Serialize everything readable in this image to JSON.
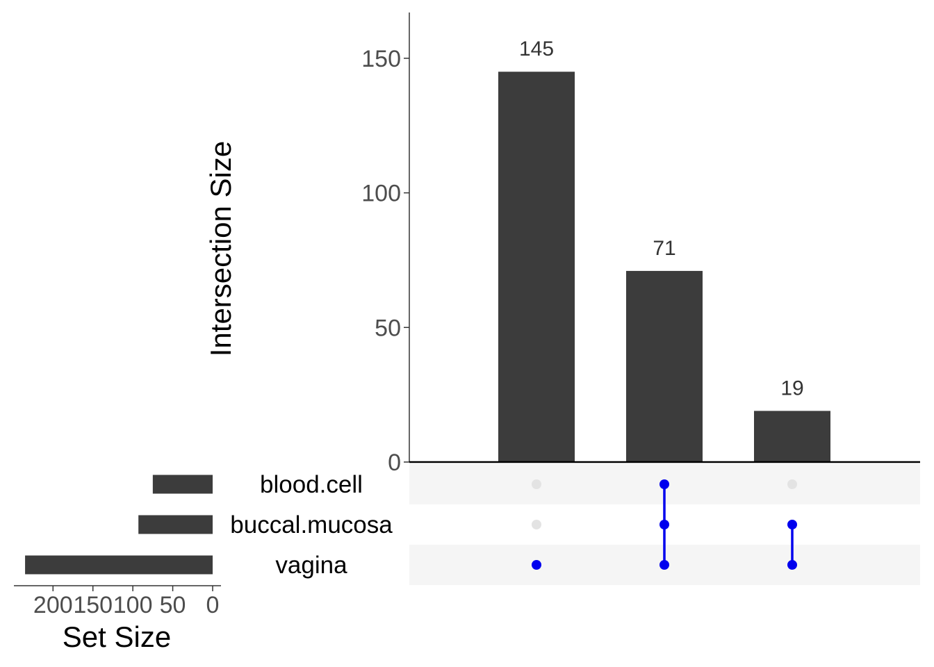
{
  "chart_data": {
    "type": "bar",
    "ylabel": "Intersection Size",
    "ylim": [
      0,
      167
    ],
    "yticks": [
      0,
      50,
      100,
      150
    ],
    "intersections": [
      {
        "sets": [
          "vagina"
        ],
        "size": 145
      },
      {
        "sets": [
          "blood.cell",
          "buccal.mucosa",
          "vagina"
        ],
        "size": 71
      },
      {
        "sets": [
          "buccal.mucosa",
          "vagina"
        ],
        "size": 19
      }
    ],
    "sets": [
      {
        "name": "blood.cell",
        "size": 75
      },
      {
        "name": "buccal.mucosa",
        "size": 93
      },
      {
        "name": "vagina",
        "size": 235
      }
    ],
    "set_size_label": "Set Size",
    "set_size_ticks": [
      200,
      150,
      100,
      50,
      0
    ],
    "set_size_xlim": [
      0,
      249
    ],
    "colors": {
      "bar": "#3c3c3c",
      "dot_active": "#0000ee",
      "dot_inactive": "#e3e3e3",
      "stripe": "#f5f5f5"
    }
  }
}
